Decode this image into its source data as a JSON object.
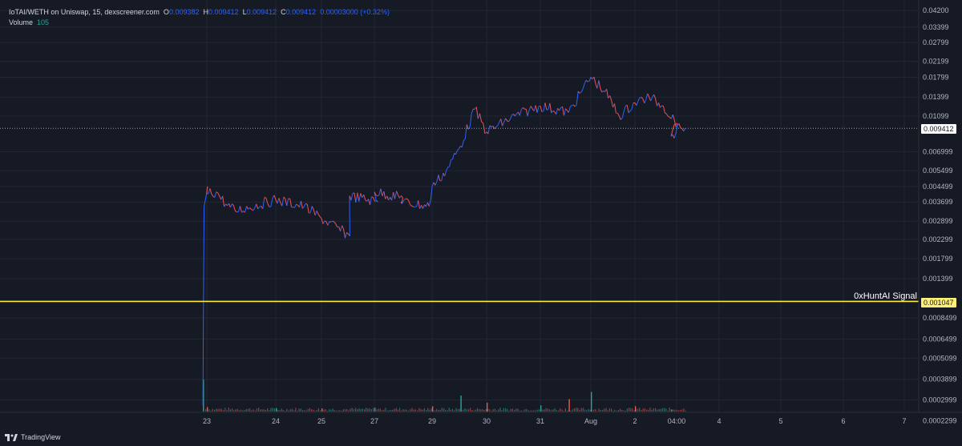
{
  "legend": {
    "symbol": "IoTAI/WETH on Uniswap, 15, dexscreener.com",
    "open_label": "O",
    "open": "0.009382",
    "high_label": "H",
    "high": "0.009412",
    "low_label": "L",
    "low": "0.009412",
    "close_label": "C",
    "close": "0.009412",
    "change": "0.00003000 (+0.32%)",
    "volume_label": "Volume",
    "volume": "105"
  },
  "annotations": {
    "signal_label": "0xHuntAI Signal",
    "signal_price": "0.001047",
    "current_price": "0.009412"
  },
  "branding": {
    "logo_text": "TradingView"
  },
  "colors": {
    "background": "#161a25",
    "grid": "#232734",
    "up": "#2962ff",
    "down": "#ef5350",
    "volume_up": "#26a69a",
    "volume_down": "#ef5350",
    "signal_line": "#ffeb3b",
    "current_line": "#9598a1"
  },
  "chart_data": {
    "type": "line",
    "title": "IoTAI/WETH on Uniswap, 15, dexscreener.com",
    "y_scale": "log",
    "y_ticks": [
      "0.04200",
      "0.03399",
      "0.02799",
      "0.02199",
      "0.01799",
      "0.01399",
      "0.01099",
      "0.006999",
      "0.005499",
      "0.004499",
      "0.003699",
      "0.002899",
      "0.002299",
      "0.001799",
      "0.001399",
      "0.0008499",
      "0.0006499",
      "0.0005099",
      "0.0003899",
      "0.0002999",
      "0.0002299"
    ],
    "x_ticks": [
      "23",
      "24",
      "25",
      "27",
      "29",
      "30",
      "31",
      "Aug",
      "2",
      "04:00",
      "4",
      "5",
      "6",
      "7"
    ],
    "ylim": [
      0.0002,
      0.043
    ],
    "price_series": {
      "name": "IoTAI/WETH",
      "x": [
        "22 18:00",
        "22 18:30",
        "22 20:00",
        "23 00:00",
        "23 04:00",
        "23 08:00",
        "23 12:00",
        "24 00:00",
        "24 12:00",
        "25 00:00",
        "25 12:00",
        "26 00:00",
        "26 12:00",
        "27 00:00",
        "27 12:00",
        "28 00:00",
        "28 12:00",
        "29 00:00",
        "29 06:00",
        "29 12:00",
        "29 18:00",
        "30 00:00",
        "30 12:00",
        "31 00:00",
        "31 12:00",
        "31 18:00",
        "Aug 1 00:00",
        "Aug 1 06:00",
        "Aug 1 12:00",
        "Aug 2 00:00",
        "Aug 2 06:00",
        "Aug 2 12:00",
        "Aug 2 18:00",
        "Aug 3 00:00",
        "Aug 3 04:00",
        "Aug 3 06:00"
      ],
      "values": [
        0.00028,
        0.0035,
        0.0045,
        0.0041,
        0.0042,
        0.0036,
        0.0033,
        0.0038,
        0.0035,
        0.003,
        0.0024,
        0.004,
        0.0037,
        0.0042,
        0.0039,
        0.0037,
        0.0035,
        0.0045,
        0.0055,
        0.0075,
        0.012,
        0.009,
        0.011,
        0.0125,
        0.0115,
        0.0155,
        0.018,
        0.015,
        0.011,
        0.013,
        0.014,
        0.0125,
        0.01,
        0.0085,
        0.0095,
        0.009412
      ]
    },
    "volume_series": {
      "name": "Volume",
      "x": [
        "22 18:00",
        "23 00:00",
        "24 00:00",
        "25 00:00",
        "27 00:00",
        "29 00:00",
        "29 12:00",
        "30 00:00",
        "31 00:00",
        "31 12:00",
        "Aug 1 00:00",
        "Aug 2 00:00",
        "Aug 3 00:00"
      ],
      "values": [
        1800,
        250,
        200,
        180,
        220,
        300,
        900,
        500,
        350,
        700,
        1100,
        300,
        105
      ]
    },
    "horizontal_lines": [
      {
        "name": "0xHuntAI Signal",
        "value": 0.001047
      },
      {
        "name": "current",
        "value": 0.009412
      }
    ]
  }
}
